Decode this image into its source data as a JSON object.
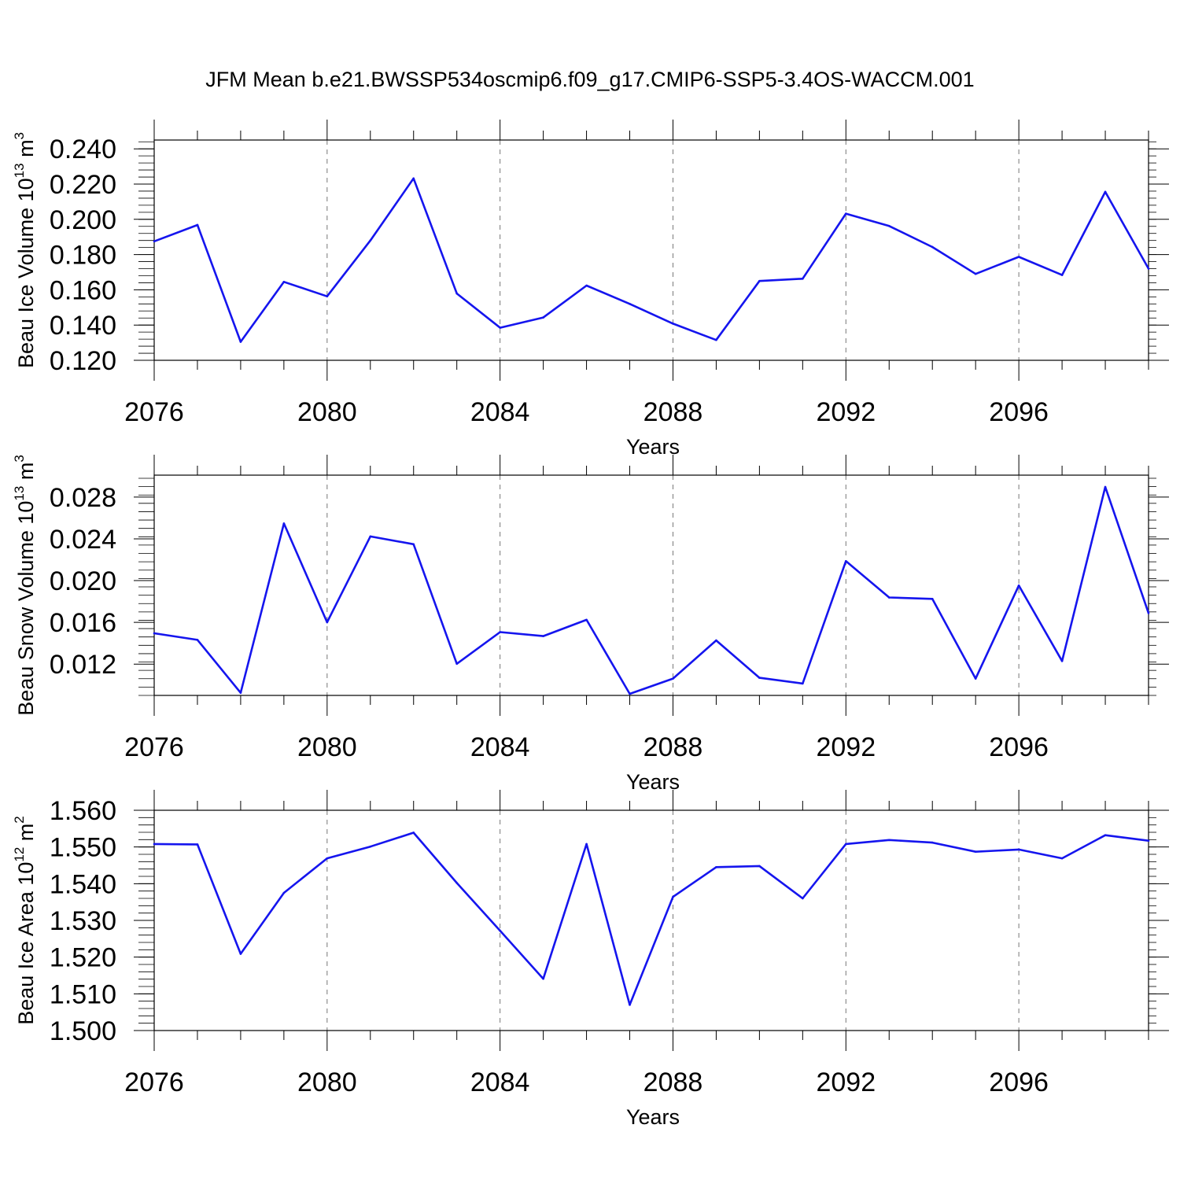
{
  "figure": {
    "title": "JFM Mean b.e21.BWSSP534oscmip6.f09_g17.CMIP6-SSP5-3.4OS-WACCM.001"
  },
  "colors": {
    "line": "#1515ee",
    "axis": "#000000",
    "grid": "#777777"
  },
  "chart_data": [
    {
      "type": "line",
      "title": "",
      "xlabel": "Years",
      "ylabel": "Beau Ice Volume 10",
      "ylabel_exp": "13",
      "ylabel_unit": " m",
      "ylabel_unit_exp": "3",
      "xlim": [
        2076,
        2099
      ],
      "ylim": [
        0.12,
        0.245
      ],
      "x_ticks": [
        2076,
        2080,
        2084,
        2088,
        2092,
        2096
      ],
      "x_tick_labels": [
        "2076",
        "2080",
        "2084",
        "2088",
        "2092",
        "2096"
      ],
      "y_ticks": [
        0.12,
        0.14,
        0.16,
        0.18,
        0.2,
        0.22,
        0.24
      ],
      "y_tick_labels": [
        "0.120",
        "0.140",
        "0.160",
        "0.180",
        "0.200",
        "0.220",
        "0.240"
      ],
      "y_minor_step": 0.004,
      "grid": "dashed vertical at x ticks",
      "x": [
        2076,
        2077,
        2078,
        2079,
        2080,
        2081,
        2082,
        2083,
        2084,
        2085,
        2086,
        2087,
        2088,
        2089,
        2090,
        2091,
        2092,
        2093,
        2094,
        2095,
        2096,
        2097,
        2098,
        2099
      ],
      "series": [
        {
          "name": "Beau Ice Volume",
          "values": [
            0.1875,
            0.1968,
            0.1305,
            0.1645,
            0.1563,
            0.188,
            0.2232,
            0.1579,
            0.1385,
            0.1443,
            0.1624,
            0.152,
            0.1408,
            0.1315,
            0.165,
            0.1663,
            0.2032,
            0.1962,
            0.1843,
            0.169,
            0.1787,
            0.1684,
            0.2156,
            0.172
          ]
        }
      ]
    },
    {
      "type": "line",
      "title": "",
      "xlabel": "Years",
      "ylabel": "Beau Snow Volume 10",
      "ylabel_exp": "13",
      "ylabel_unit": " m",
      "ylabel_unit_exp": "3",
      "xlim": [
        2076,
        2099
      ],
      "ylim": [
        0.009,
        0.0301
      ],
      "x_ticks": [
        2076,
        2080,
        2084,
        2088,
        2092,
        2096
      ],
      "x_tick_labels": [
        "2076",
        "2080",
        "2084",
        "2088",
        "2092",
        "2096"
      ],
      "y_ticks": [
        0.012,
        0.016,
        0.02,
        0.024,
        0.028
      ],
      "y_tick_labels": [
        "0.012",
        "0.016",
        "0.020",
        "0.024",
        "0.028"
      ],
      "y_minor_step": 0.0008,
      "grid": "dashed vertical at x ticks",
      "x": [
        2076,
        2077,
        2078,
        2079,
        2080,
        2081,
        2082,
        2083,
        2084,
        2085,
        2086,
        2087,
        2088,
        2089,
        2090,
        2091,
        2092,
        2093,
        2094,
        2095,
        2096,
        2097,
        2098,
        2099
      ],
      "series": [
        {
          "name": "Beau Snow Volume",
          "values": [
            0.01495,
            0.01432,
            0.00925,
            0.02547,
            0.01601,
            0.02423,
            0.02348,
            0.01203,
            0.01507,
            0.01468,
            0.01624,
            0.00915,
            0.01061,
            0.01427,
            0.01069,
            0.01014,
            0.02186,
            0.01838,
            0.01825,
            0.01061,
            0.01953,
            0.01229,
            0.02897,
            0.01688
          ]
        }
      ]
    },
    {
      "type": "line",
      "title": "",
      "xlabel": "Years",
      "ylabel": "Beau Ice Area 10",
      "ylabel_exp": "12",
      "ylabel_unit": " m",
      "ylabel_unit_exp": "2",
      "xlim": [
        2076,
        2099
      ],
      "ylim": [
        1.5,
        1.56
      ],
      "x_ticks": [
        2076,
        2080,
        2084,
        2088,
        2092,
        2096
      ],
      "x_tick_labels": [
        "2076",
        "2080",
        "2084",
        "2088",
        "2092",
        "2096"
      ],
      "y_ticks": [
        1.5,
        1.51,
        1.52,
        1.53,
        1.54,
        1.55,
        1.56
      ],
      "y_tick_labels": [
        "1.500",
        "1.510",
        "1.520",
        "1.530",
        "1.540",
        "1.550",
        "1.560"
      ],
      "y_minor_step": 0.002,
      "grid": "dashed vertical at x ticks",
      "x": [
        2076,
        2077,
        2078,
        2079,
        2080,
        2081,
        2082,
        2083,
        2084,
        2085,
        2086,
        2087,
        2088,
        2089,
        2090,
        2091,
        2092,
        2093,
        2094,
        2095,
        2096,
        2097,
        2098,
        2099
      ],
      "series": [
        {
          "name": "Beau Ice Area",
          "values": [
            1.5508,
            1.5507,
            1.5209,
            1.5375,
            1.5469,
            1.5501,
            1.5539,
            1.5402,
            1.5272,
            1.5141,
            1.5508,
            1.507,
            1.5364,
            1.5445,
            1.5448,
            1.536,
            1.5508,
            1.5519,
            1.5512,
            1.5487,
            1.5493,
            1.5469,
            1.5532,
            1.5517
          ]
        }
      ]
    }
  ]
}
